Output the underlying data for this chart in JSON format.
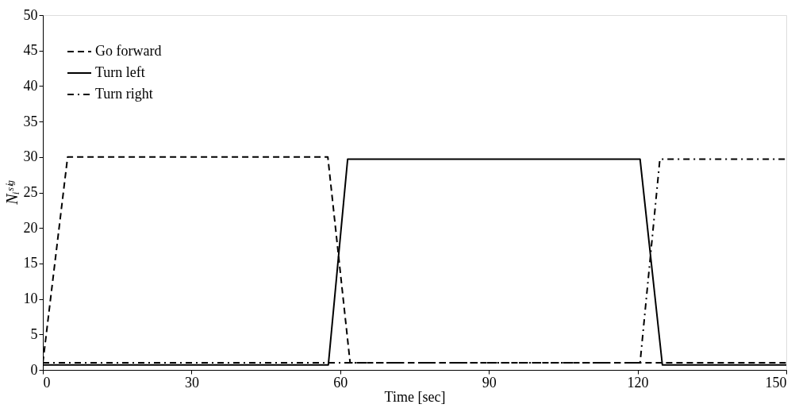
{
  "chart_data": {
    "type": "line",
    "xlabel": "Time [sec]",
    "ylabel": "Nᵢˢⁱᵍ",
    "xlim": [
      0,
      150
    ],
    "xticks": [
      0,
      30,
      60,
      90,
      120,
      150
    ],
    "ylim": [
      0,
      50
    ],
    "yticks": [
      0,
      5,
      10,
      15,
      20,
      25,
      30,
      35,
      40,
      45,
      50
    ],
    "grid": false,
    "legend": "top left",
    "marker": "none",
    "series": [
      {
        "name": "Go forward",
        "color": "#000000",
        "line_style": "dashed",
        "x": [
          0,
          5,
          57.5,
          62,
          150
        ],
        "values": [
          1,
          30,
          30,
          1,
          1
        ]
      },
      {
        "name": "Turn left",
        "color": "#000000",
        "line_style": "solid",
        "x": [
          0,
          57.6,
          61.5,
          120.5,
          125,
          150
        ],
        "values": [
          0.7,
          0.7,
          29.7,
          29.7,
          0.7,
          0.7
        ]
      },
      {
        "name": "Turn right",
        "color": "#000000",
        "line_style": "dashdot",
        "x": [
          0,
          120.5,
          124.5,
          150
        ],
        "values": [
          1,
          1,
          29.7,
          29.7
        ]
      }
    ]
  }
}
